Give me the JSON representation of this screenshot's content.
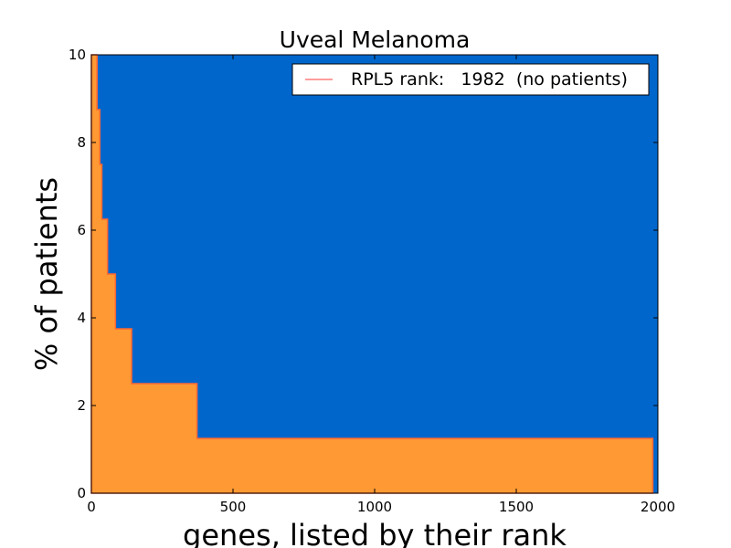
{
  "chart_data": {
    "type": "area",
    "title": "Uveal Melanoma",
    "xlabel": "genes, listed by their rank",
    "ylabel": "% of patients",
    "xlim": [
      0,
      2000
    ],
    "ylim": [
      0,
      10
    ],
    "xticks": [
      0,
      500,
      1000,
      1500,
      2000
    ],
    "yticks": [
      0,
      2,
      4,
      6,
      8,
      10
    ],
    "grid": false,
    "legend_position": "top-right",
    "legend": [
      {
        "label": "RPL5 rank:   1982  (no patients)",
        "color": "#ff6060"
      }
    ],
    "colors": {
      "background": "#0066cc",
      "fill": "#ff9933",
      "step_line": "#ff6633"
    },
    "series": [
      {
        "steps": [
          {
            "x": 0,
            "y": 10
          },
          {
            "x": 20,
            "y": 8.75
          },
          {
            "x": 30,
            "y": 7.5
          },
          {
            "x": 37,
            "y": 6.25
          },
          {
            "x": 57,
            "y": 5
          },
          {
            "x": 85,
            "y": 3.75
          },
          {
            "x": 142,
            "y": 2.5
          },
          {
            "x": 373,
            "y": 1.25
          },
          {
            "x": 1982,
            "y": 0
          }
        ]
      }
    ]
  }
}
